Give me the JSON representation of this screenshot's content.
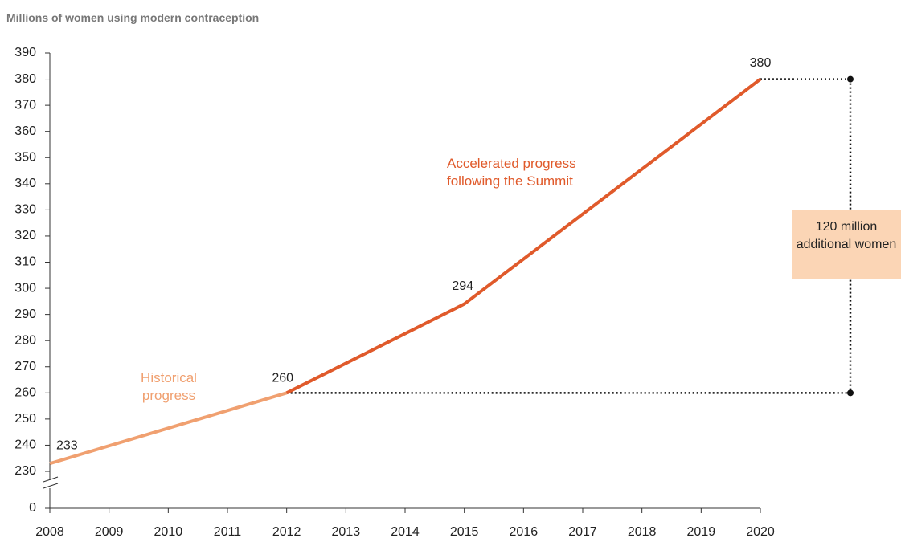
{
  "chart_data": {
    "type": "line",
    "title": "Millions of women using modern contraception",
    "xlim": [
      2008,
      2020
    ],
    "xticks": [
      2008,
      2009,
      2010,
      2011,
      2012,
      2013,
      2014,
      2015,
      2016,
      2017,
      2018,
      2019,
      2020
    ],
    "ylim": [
      0,
      390
    ],
    "yticks": [
      0,
      230,
      240,
      250,
      260,
      270,
      280,
      290,
      300,
      310,
      320,
      330,
      340,
      350,
      360,
      370,
      380,
      390
    ],
    "axis_break": [
      0,
      230
    ],
    "series": [
      {
        "name": "Historical progress",
        "color": "#f0a070",
        "x": [
          2008,
          2012
        ],
        "values": [
          233,
          260
        ]
      },
      {
        "name": "Accelerated progress following the Summit",
        "color": "#e05a2b",
        "x": [
          2012,
          2015,
          2020
        ],
        "values": [
          260,
          294,
          380
        ]
      }
    ],
    "annotation": "120 million additional women",
    "annotation_color": "#fbd5b5"
  }
}
